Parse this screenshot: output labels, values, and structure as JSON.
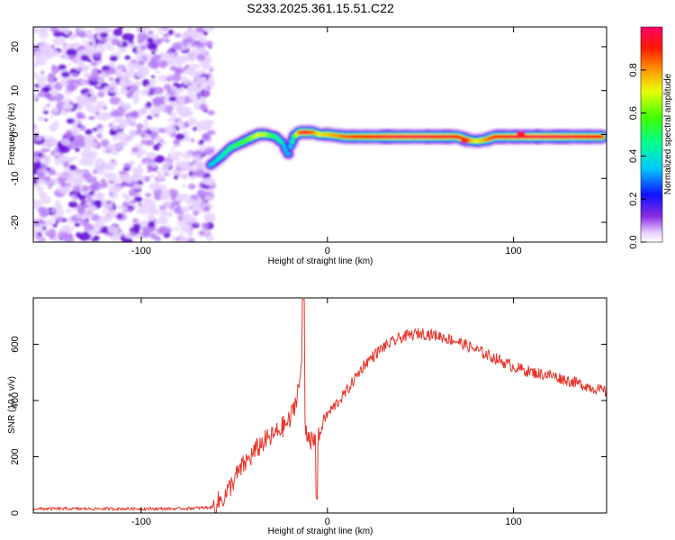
{
  "figure": {
    "title": "S233.2025.361.15.51.C22"
  },
  "chart_data": [
    {
      "type": "heatmap",
      "title": "S233.2025.361.15.51.C22",
      "xlabel": "Height of straight line (km)",
      "ylabel": "Frequency (Hz)",
      "xlim": [
        -158,
        150
      ],
      "ylim": [
        -24.5,
        24.5
      ],
      "x_ticks": [
        -100,
        0,
        100
      ],
      "y_ticks": [
        20,
        10,
        0,
        -10,
        -20
      ],
      "colorbar": {
        "label": "Normalized spectral amplitude",
        "range": [
          0.0,
          1.0
        ],
        "ticks": [
          0.0,
          0.2,
          0.4,
          0.6,
          0.8
        ],
        "tick_labels": [
          "0.0",
          "0.2",
          "0.4",
          "0.6",
          "0.8"
        ]
      },
      "noise_region_x": [
        -158,
        -62
      ],
      "ridge": {
        "x": [
          -63,
          -57,
          -52,
          -47,
          -42,
          -37,
          -33,
          -28,
          -24,
          -21,
          -20,
          -18,
          -15,
          -12,
          -8,
          -4,
          0,
          10,
          30,
          50,
          70,
          75,
          80,
          85,
          90,
          100,
          110,
          120,
          130,
          140,
          148
        ],
        "freq": [
          -7,
          -5,
          -3,
          -2,
          -1,
          0,
          0,
          -0.5,
          -2,
          -5,
          -3,
          -0.5,
          0.5,
          0.5,
          0.5,
          0,
          0,
          -0.5,
          -0.5,
          -0.5,
          -0.5,
          -1.2,
          -1.5,
          -1.2,
          -0.5,
          -0.5,
          -0.5,
          -0.5,
          -0.5,
          -0.5,
          -0.5
        ],
        "amplitude": [
          0.35,
          0.42,
          0.5,
          0.55,
          0.6,
          0.7,
          0.65,
          0.5,
          0.4,
          0.3,
          0.35,
          0.55,
          0.85,
          0.95,
          0.85,
          0.7,
          0.75,
          0.85,
          0.95,
          0.98,
          0.92,
          0.85,
          0.7,
          0.8,
          0.9,
          0.95,
          0.98,
          0.97,
          0.95,
          0.93,
          0.9
        ]
      },
      "hotspots": [
        {
          "x": -12,
          "freq": 0.5,
          "amplitude": 0.95
        },
        {
          "x": 74,
          "freq": -1.5,
          "amplitude": 0.9
        },
        {
          "x": 104,
          "freq": 0.2,
          "amplitude": 0.92
        }
      ]
    },
    {
      "type": "line",
      "xlabel": "Height of straight line (km)",
      "ylabel": "SNR (10 * v/v)",
      "xlim": [
        -158,
        150
      ],
      "ylim": [
        0,
        765
      ],
      "x_ticks": [
        -100,
        0,
        100
      ],
      "y_ticks": [
        0,
        200,
        400,
        600
      ],
      "color": "#e8352a",
      "series": [
        {
          "name": "SNR",
          "x": [
            -158,
            -120,
            -80,
            -62,
            -55,
            -50,
            -45,
            -40,
            -35,
            -30,
            -25,
            -20,
            -17,
            -14,
            -13,
            -12,
            -10,
            -8,
            -5,
            -2,
            0,
            5,
            10,
            15,
            20,
            30,
            40,
            50,
            60,
            70,
            80,
            90,
            100,
            110,
            120,
            130,
            140,
            150
          ],
          "y": [
            15,
            15,
            15,
            20,
            60,
            120,
            170,
            210,
            250,
            270,
            300,
            330,
            400,
            500,
            760,
            300,
            280,
            250,
            260,
            330,
            350,
            390,
            430,
            480,
            530,
            590,
            625,
            640,
            630,
            610,
            580,
            550,
            520,
            500,
            490,
            470,
            450,
            430
          ]
        }
      ],
      "noise_amplitude": 60
    }
  ]
}
